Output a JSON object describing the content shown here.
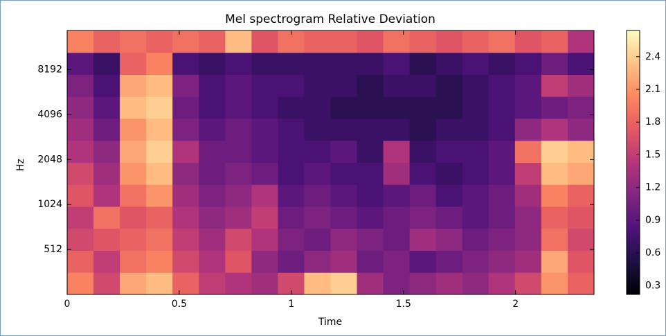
{
  "chart_data": {
    "type": "heatmap",
    "title": "Mel spectrogram Relative Deviation",
    "x_label": "Time",
    "y_label": "Hz",
    "xlim": [
      0,
      2.35
    ],
    "xticks": [
      0,
      0.5,
      1,
      1.5,
      2
    ],
    "ylim": [
      256,
      15000
    ],
    "yscale": "log",
    "yticks": [
      512,
      1024,
      2048,
      4096,
      8192
    ],
    "colormap": "magma",
    "clim": [
      0.22,
      2.64
    ],
    "colorbar_ticks": [
      0.3,
      0.6,
      0.9,
      1.2,
      1.5,
      1.8,
      2.1,
      2.4
    ],
    "z": [
      [
        2.0,
        1.6,
        2.2,
        2.3,
        1.8,
        1.5,
        1.4,
        1.3,
        1.6,
        2.3,
        2.4,
        1.3,
        1.1,
        1.2,
        1.3,
        1.2,
        1.4,
        1.6,
        2.1,
        1.8
      ],
      [
        1.8,
        1.5,
        1.9,
        2.0,
        1.6,
        1.4,
        1.7,
        1.2,
        1.0,
        1.2,
        1.3,
        1.0,
        1.1,
        0.9,
        1.0,
        1.1,
        1.2,
        1.3,
        2.2,
        1.7
      ],
      [
        1.6,
        1.7,
        1.8,
        1.9,
        1.5,
        1.3,
        1.6,
        1.4,
        1.1,
        1.0,
        1.2,
        1.1,
        1.0,
        1.3,
        1.2,
        1.0,
        1.1,
        1.2,
        1.9,
        1.6
      ],
      [
        1.5,
        1.9,
        1.7,
        1.8,
        1.4,
        1.2,
        1.3,
        1.5,
        1.0,
        1.1,
        1.0,
        0.9,
        1.0,
        1.1,
        1.0,
        0.9,
        1.0,
        1.2,
        1.8,
        1.7
      ],
      [
        1.7,
        1.4,
        1.9,
        2.1,
        1.3,
        1.1,
        1.2,
        1.4,
        0.9,
        1.0,
        0.9,
        0.8,
        0.9,
        1.0,
        0.8,
        0.9,
        1.0,
        1.3,
        2.0,
        1.8
      ],
      [
        1.6,
        1.3,
        2.1,
        2.3,
        1.2,
        1.0,
        1.1,
        1.0,
        0.8,
        0.9,
        0.8,
        0.8,
        1.3,
        0.8,
        0.7,
        0.8,
        0.9,
        1.5,
        2.3,
        2.2
      ],
      [
        1.4,
        1.2,
        2.2,
        2.4,
        1.4,
        1.0,
        1.0,
        0.9,
        0.8,
        0.8,
        0.9,
        0.7,
        1.4,
        0.7,
        0.8,
        0.8,
        0.9,
        1.9,
        2.4,
        2.3
      ],
      [
        1.3,
        1.0,
        2.1,
        2.3,
        1.1,
        0.9,
        1.0,
        0.9,
        0.8,
        0.7,
        0.7,
        0.7,
        0.7,
        0.6,
        0.7,
        0.7,
        0.8,
        1.2,
        1.4,
        1.2
      ],
      [
        1.2,
        0.9,
        2.3,
        2.4,
        1.0,
        0.8,
        0.9,
        0.8,
        0.7,
        0.7,
        0.6,
        0.6,
        0.6,
        0.6,
        0.6,
        0.7,
        0.8,
        0.9,
        1.0,
        1.1
      ],
      [
        1.1,
        0.8,
        2.2,
        2.3,
        1.1,
        0.8,
        0.9,
        0.8,
        0.8,
        0.7,
        0.7,
        0.6,
        0.7,
        0.7,
        0.6,
        0.7,
        0.8,
        0.9,
        1.5,
        1.3
      ],
      [
        0.9,
        0.7,
        1.8,
        2.0,
        0.8,
        0.7,
        0.8,
        0.7,
        0.7,
        0.7,
        0.7,
        0.7,
        0.8,
        0.6,
        0.7,
        0.8,
        0.7,
        0.8,
        1.0,
        0.8
      ],
      [
        2.0,
        1.8,
        1.9,
        1.8,
        1.9,
        1.8,
        2.3,
        1.7,
        1.9,
        1.8,
        1.8,
        1.7,
        1.9,
        1.8,
        1.7,
        1.8,
        1.9,
        1.7,
        1.8,
        1.4
      ]
    ]
  }
}
